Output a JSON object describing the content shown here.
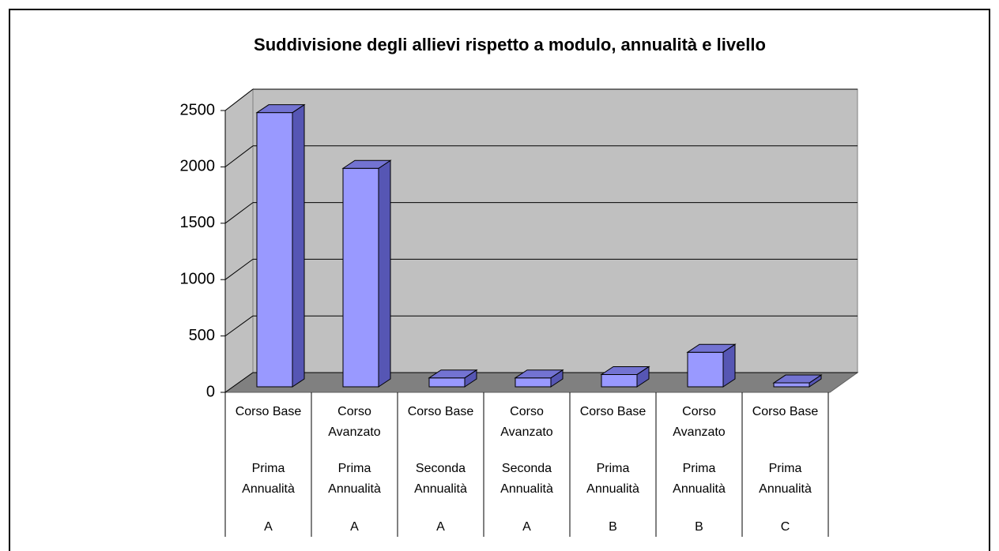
{
  "chart_data": {
    "type": "bar3d",
    "title": "Suddivisione degli allievi rispetto a modulo, annualità e livello",
    "categories": [
      [
        "Corso Base",
        "Prima Annualità",
        "A"
      ],
      [
        "Corso Avanzato",
        "Prima Annualità",
        "A"
      ],
      [
        "Corso Base",
        "Seconda Annualità",
        "A"
      ],
      [
        "Corso Avanzato",
        "Seconda Annualità",
        "A"
      ],
      [
        "Corso Base",
        "Prima Annualità",
        "B"
      ],
      [
        "Corso Avanzato",
        "Prima Annualità",
        "B"
      ],
      [
        "Corso Base",
        "Prima Annualità",
        "C"
      ]
    ],
    "values": [
      2460,
      1960,
      80,
      80,
      110,
      310,
      35
    ],
    "color": "#9999ff",
    "ylim": [
      0,
      2500
    ],
    "yticks": [
      0,
      500,
      1000,
      1500,
      2000,
      2500
    ],
    "grid": true
  }
}
